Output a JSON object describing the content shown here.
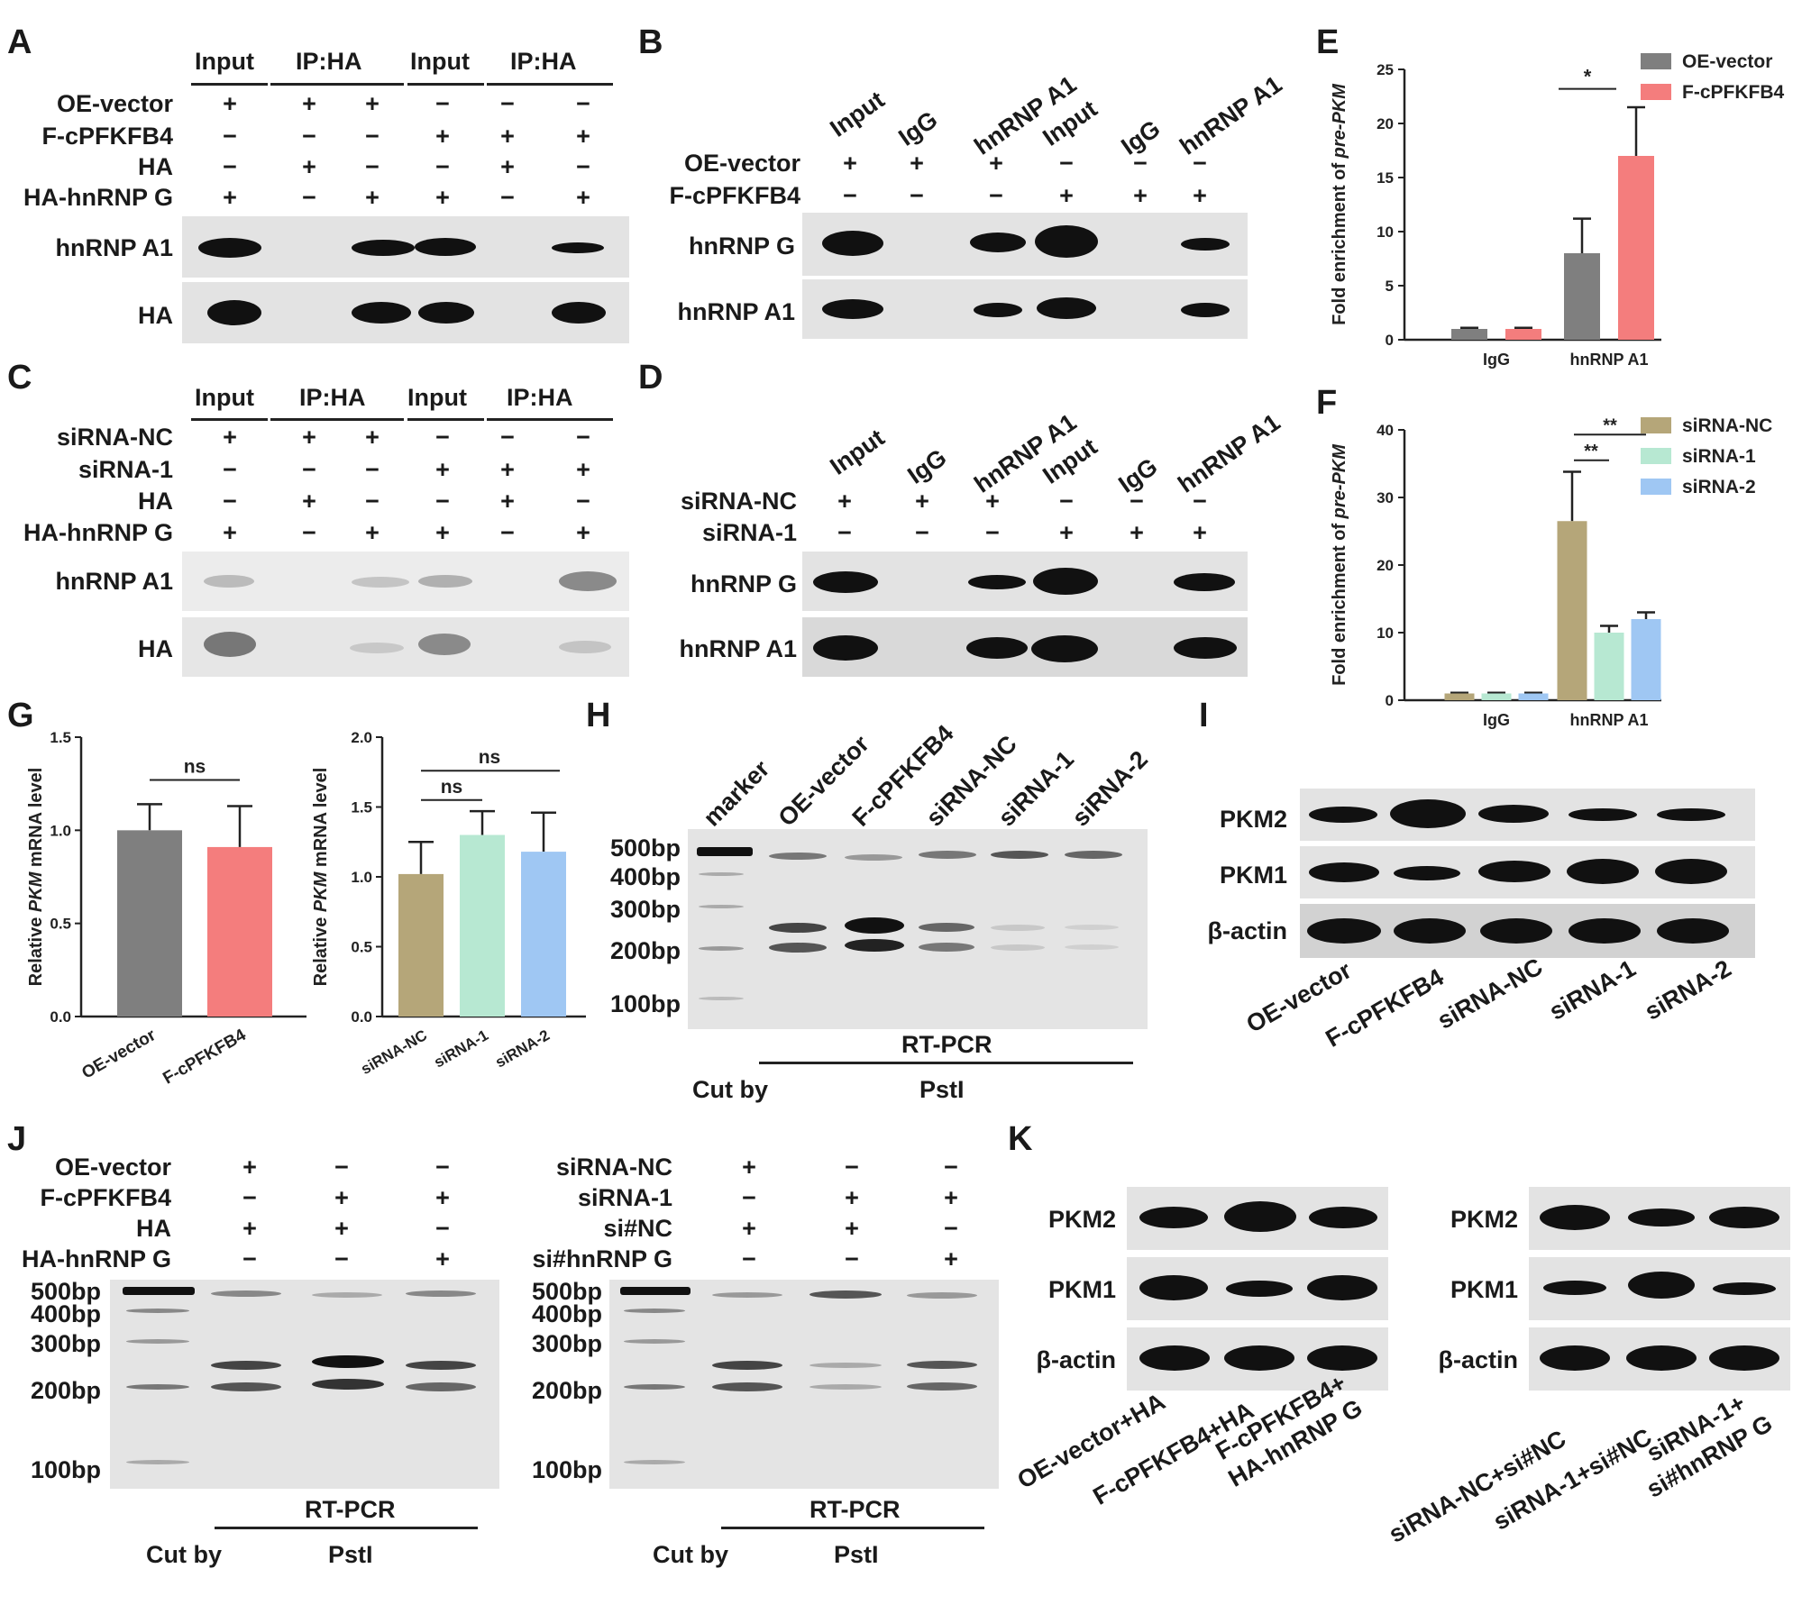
{
  "panels": {
    "A": "A",
    "B": "B",
    "C": "C",
    "D": "D",
    "E": "E",
    "F": "F",
    "G": "G",
    "H": "H",
    "I": "I",
    "J": "J",
    "K": "K"
  },
  "common": {
    "input": "Input",
    "ip_ha": "IP:HA",
    "igg": "IgG",
    "hnrnpa1": "hnRNP A1",
    "hnrnpg": "hnRNP G",
    "ha": "HA",
    "ha_hnrnpg": "HA-hnRNP G",
    "oe_vector": "OE-vector",
    "f_cpfkfb4": "F-cPFKFB4",
    "sirna_nc": "siRNA-NC",
    "sirna_1": "siRNA-1",
    "sirna_2": "siRNA-2",
    "plus": "+",
    "minus": "−",
    "pkm2": "PKM2",
    "pkm1": "PKM1",
    "bactin": "β-actin",
    "marker": "marker",
    "rt_pcr": "RT-PCR",
    "cut_by": "Cut by",
    "psti": "PstI",
    "si_nc": "si#NC",
    "si_hnrnpg": "si#hnRNP G",
    "bp500": "500bp",
    "bp400": "400bp",
    "bp300": "300bp",
    "bp200": "200bp",
    "bp100": "100bp",
    "ns": "ns",
    "star1": "*",
    "star2": "**"
  },
  "panelK": {
    "left_labels": [
      "OE-vector+HA",
      "F-cPFKFB4+HA",
      "F-cPFKFB4+",
      "HA-hnRNP G"
    ],
    "right_labels": [
      "siRNA-NC+si#NC",
      "siRNA-1+si#NC",
      "siRNA-1+",
      "si#hnRNP G"
    ]
  },
  "chart_data": [
    {
      "panel": "E",
      "type": "bar",
      "ylabel": "Fold enrichment of pre-PKM",
      "categories": [
        "IgG",
        "hnRNP A1"
      ],
      "ylim": [
        0,
        25
      ],
      "yticks": [
        0,
        5,
        10,
        15,
        20,
        25
      ],
      "series": [
        {
          "name": "OE-vector",
          "color": "#7f7f7f",
          "values": [
            1.0,
            8.0
          ],
          "errors": [
            0.1,
            3.2
          ]
        },
        {
          "name": "F-cPFKFB4",
          "color": "#f47d7d",
          "values": [
            1.0,
            17.0
          ],
          "errors": [
            0.1,
            4.5
          ]
        }
      ],
      "annotations": [
        {
          "text": "*",
          "between": [
            "OE-vector",
            "F-cPFKFB4"
          ],
          "category": "hnRNP A1"
        }
      ],
      "legend": "top-right"
    },
    {
      "panel": "F",
      "type": "bar",
      "ylabel": "Fold enrichment of pre-PKM",
      "categories": [
        "IgG",
        "hnRNP A1"
      ],
      "ylim": [
        0,
        40
      ],
      "yticks": [
        0,
        10,
        20,
        30,
        40
      ],
      "series": [
        {
          "name": "siRNA-NC",
          "color": "#b5a679",
          "values": [
            1.0,
            26.5
          ],
          "errors": [
            0.1,
            7.3
          ]
        },
        {
          "name": "siRNA-1",
          "color": "#b7e8d2",
          "values": [
            1.0,
            10.0
          ],
          "errors": [
            0.1,
            1.0
          ]
        },
        {
          "name": "siRNA-2",
          "color": "#9fc7f3",
          "values": [
            1.0,
            12.0
          ],
          "errors": [
            0.1,
            1.0
          ]
        }
      ],
      "annotations": [
        {
          "text": "**",
          "between": [
            "siRNA-NC",
            "siRNA-1"
          ]
        },
        {
          "text": "**",
          "between": [
            "siRNA-NC",
            "siRNA-2"
          ]
        }
      ],
      "legend": "top-right"
    },
    {
      "panel": "G-left",
      "type": "bar",
      "ylabel": "Relative PKM mRNA level",
      "categories": [
        "OE-vector",
        "F-cPFKFB4"
      ],
      "ylim": [
        0,
        1.5
      ],
      "yticks": [
        0.0,
        0.5,
        1.0,
        1.5
      ],
      "values": [
        1.0,
        0.91
      ],
      "errors": [
        0.14,
        0.22
      ],
      "colors": [
        "#7f7f7f",
        "#f47d7d"
      ],
      "annotations": [
        {
          "text": "ns",
          "between": [
            "OE-vector",
            "F-cPFKFB4"
          ]
        }
      ]
    },
    {
      "panel": "G-right",
      "type": "bar",
      "ylabel": "Relative PKM mRNA level",
      "categories": [
        "siRNA-NC",
        "siRNA-1",
        "siRNA-2"
      ],
      "ylim": [
        0,
        2.0
      ],
      "yticks": [
        0.0,
        0.5,
        1.0,
        1.5,
        2.0
      ],
      "values": [
        1.02,
        1.3,
        1.18
      ],
      "errors": [
        0.23,
        0.17,
        0.28
      ],
      "colors": [
        "#b5a679",
        "#b7e8d2",
        "#9fc7f3"
      ],
      "annotations": [
        {
          "text": "ns",
          "between": [
            "siRNA-NC",
            "siRNA-1"
          ]
        },
        {
          "text": "ns",
          "between": [
            "siRNA-NC",
            "siRNA-2"
          ]
        }
      ]
    }
  ]
}
